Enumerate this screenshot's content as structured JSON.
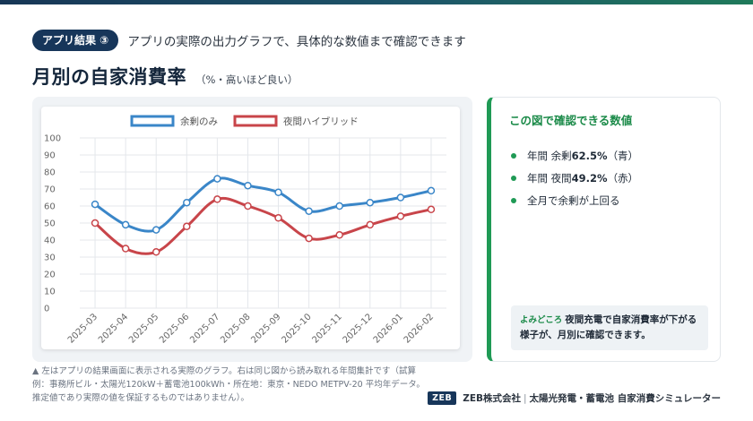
{
  "header": {
    "badge": "アプリ結果 ③",
    "subtitle": "アプリの実際の出力グラフで、具体的な数値まで確認できます"
  },
  "title": {
    "main": "月別の自家消費率",
    "note": "（%・高いほど良い）"
  },
  "chart_data": {
    "type": "line",
    "categories": [
      "2025-03",
      "2025-04",
      "2025-05",
      "2025-06",
      "2025-07",
      "2025-08",
      "2025-09",
      "2025-10",
      "2025-11",
      "2025-12",
      "2026-01",
      "2026-02"
    ],
    "series": [
      {
        "name": "余剰のみ",
        "color": "#3a86c8",
        "values": [
          61,
          49,
          46,
          62,
          76,
          72,
          68,
          57,
          60,
          62,
          65,
          69
        ]
      },
      {
        "name": "夜間ハイブリッド",
        "color": "#c8454a",
        "values": [
          50,
          35,
          33,
          48,
          64,
          60,
          53,
          41,
          43,
          49,
          54,
          58
        ]
      }
    ],
    "ylim": [
      0,
      100
    ],
    "yticks": [
      0,
      10,
      20,
      30,
      40,
      50,
      60,
      70,
      80,
      90,
      100
    ],
    "grid": true,
    "legend": "top-center"
  },
  "info": {
    "title": "この図で確認できる数値",
    "bullets": [
      {
        "prefix": "年間 余剰 ",
        "value": "62.5%",
        "suffix": "（青）"
      },
      {
        "prefix": "年間 夜間 ",
        "value": "49.2%",
        "suffix": "（赤）"
      },
      {
        "prefix": "全月で余剰が上回る",
        "value": "",
        "suffix": ""
      }
    ],
    "tip_label": "よみどころ",
    "tip_text": "夜間充電で自家消費率が下がる様子が、月別に確認できます。"
  },
  "footnote": "▲ 左はアプリの結果画面に表示される実際のグラフ。右は同じ図から読み取れる年間集計です（試算例：事務所ビル・太陽光120kW＋蓄電池100kWh・所在地：東京・NEDO METPV-20 平均年データ。推定値であり実際の値を保証するものではありません）。",
  "brand": {
    "badge": "ZEB",
    "company": "ZEB株式会社",
    "product": "太陽光発電・蓄電池 自家消費シミュレーター"
  }
}
